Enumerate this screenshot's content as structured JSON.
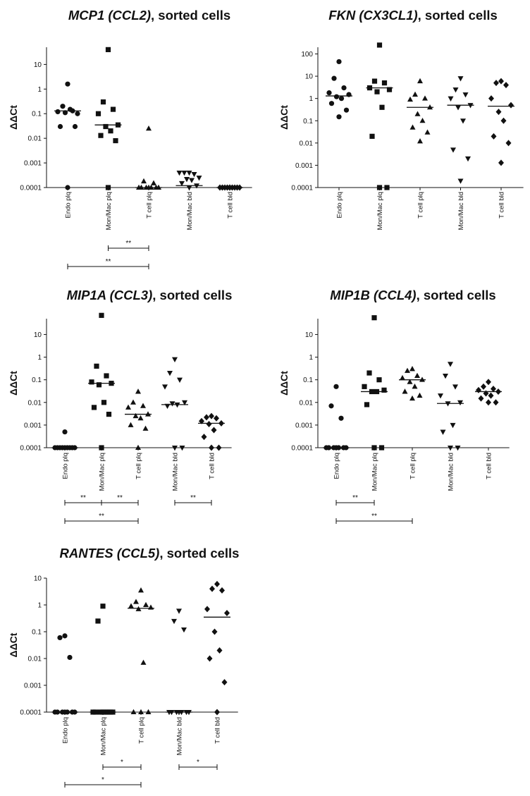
{
  "chart_data": [
    {
      "type": "scatter",
      "title": {
        "gene": "MCP1 (CCL2)",
        "suffix": ", sorted cells"
      },
      "ylabel": "ΔΔCt",
      "yscale": "log",
      "ylim": [
        0.0001,
        50
      ],
      "yticks": [
        "10",
        "1",
        "0.1",
        "0.01",
        "0.001",
        "0.0001"
      ],
      "categories": [
        "Endo plq",
        "Mon/Mac plq",
        "T cell plq",
        "Mon/Mac bld",
        "T cell bld"
      ],
      "series": [
        {
          "category": "Endo plq",
          "marker": "circle",
          "median": 0.13,
          "values": [
            1.6,
            0.2,
            0.13,
            0.12,
            0.1,
            0.11,
            0.15,
            0.03,
            0.03,
            0.0001
          ]
        },
        {
          "category": "Mon/Mac plq",
          "marker": "square",
          "median": 0.035,
          "values": [
            40,
            0.3,
            0.15,
            0.1,
            0.035,
            0.03,
            0.02,
            0.013,
            0.008,
            0.0001
          ]
        },
        {
          "category": "T cell plq",
          "marker": "triangle-up",
          "median": 0.0001,
          "values": [
            0.025,
            0.00018,
            0.00015,
            0.0001,
            0.0001,
            0.0001,
            0.0001,
            0.0001,
            0.0001,
            0.0001
          ]
        },
        {
          "category": "Mon/Mac bld",
          "marker": "triangle-down",
          "median": 0.00012,
          "values": [
            0.0004,
            0.0004,
            0.00035,
            0.0004,
            0.00025,
            0.00022,
            0.0002,
            0.00015,
            0.00012,
            0.0001
          ]
        },
        {
          "category": "T cell bld",
          "marker": "diamond",
          "median": 0.0001,
          "values": [
            0.0001,
            0.0001,
            0.0001,
            0.0001,
            0.0001,
            0.0001,
            0.0001,
            0.0001,
            0.0001,
            0.0001
          ]
        }
      ],
      "significance": [
        {
          "from": "Mon/Mac plq",
          "to": "T cell plq",
          "label": "**",
          "level": 0
        },
        {
          "from": "Endo plq",
          "to": "T cell plq",
          "label": "**",
          "level": 1
        }
      ]
    },
    {
      "type": "scatter",
      "title": {
        "gene": "FKN (CX3CL1)",
        "suffix": ", sorted cells"
      },
      "ylabel": "ΔΔCt",
      "yscale": "log",
      "ylim": [
        0.0001,
        200
      ],
      "yticks": [
        "100",
        "10",
        "1",
        "0.1",
        "0.01",
        "0.001",
        "0.0001"
      ],
      "categories": [
        "Endo plq",
        "Mon/Mac plq",
        "T cell plq",
        "Mon/Mac bld",
        "T cell bld"
      ],
      "series": [
        {
          "category": "Endo plq",
          "marker": "circle",
          "median": 1.3,
          "values": [
            45,
            8,
            3,
            1.8,
            1.5,
            1.2,
            1,
            0.6,
            0.3,
            0.15
          ]
        },
        {
          "category": "Mon/Mac plq",
          "marker": "square",
          "median": 3,
          "values": [
            250,
            6,
            5,
            3,
            2.5,
            2,
            0.4,
            0.02,
            0.0001,
            0.0001
          ]
        },
        {
          "category": "T cell plq",
          "marker": "triangle-up",
          "median": 0.4,
          "values": [
            6,
            1.5,
            1,
            0.9,
            0.4,
            0.2,
            0.1,
            0.05,
            0.03,
            0.012
          ]
        },
        {
          "category": "Mon/Mac bld",
          "marker": "triangle-down",
          "median": 0.5,
          "values": [
            8,
            2.5,
            1.5,
            1,
            0.5,
            0.4,
            0.1,
            0.005,
            0.002,
            0.0002
          ]
        },
        {
          "category": "T cell bld",
          "marker": "diamond",
          "median": 0.45,
          "values": [
            6,
            5,
            4,
            1,
            0.5,
            0.25,
            0.1,
            0.02,
            0.01,
            0.0013
          ]
        }
      ],
      "significance": []
    },
    {
      "type": "scatter",
      "title": {
        "gene": "MIP1A (CCL3)",
        "suffix": ", sorted cells"
      },
      "ylabel": "ΔΔCt",
      "yscale": "log",
      "ylim": [
        0.0001,
        50
      ],
      "yticks": [
        "10",
        "1",
        "0.1",
        "0.01",
        "0.001",
        "0.0001"
      ],
      "categories": [
        "Endo plq",
        "Mon/Mac plq",
        "T cell plq",
        "Mon/Mac bld",
        "T cell bld"
      ],
      "series": [
        {
          "category": "Endo plq",
          "marker": "circle",
          "median": 0.0001,
          "values": [
            0.0005,
            0.0001,
            0.0001,
            0.0001,
            0.0001,
            0.0001,
            0.0001,
            0.0001,
            0.0001,
            0.0001
          ]
        },
        {
          "category": "Mon/Mac plq",
          "marker": "square",
          "median": 0.07,
          "values": [
            70,
            0.4,
            0.15,
            0.08,
            0.07,
            0.06,
            0.01,
            0.006,
            0.003,
            0.0001
          ]
        },
        {
          "category": "T cell plq",
          "marker": "triangle-up",
          "median": 0.003,
          "values": [
            0.03,
            0.01,
            0.007,
            0.006,
            0.003,
            0.0025,
            0.002,
            0.001,
            0.0007,
            0.0001
          ]
        },
        {
          "category": "Mon/Mac bld",
          "marker": "triangle-down",
          "median": 0.008,
          "values": [
            0.8,
            0.2,
            0.1,
            0.05,
            0.01,
            0.009,
            0.008,
            0.007,
            0.0001,
            0.0001
          ]
        },
        {
          "category": "T cell bld",
          "marker": "diamond",
          "median": 0.0012,
          "values": [
            0.0025,
            0.0022,
            0.002,
            0.0015,
            0.0012,
            0.0011,
            0.0006,
            0.0003,
            0.0001,
            0.0001
          ]
        }
      ],
      "significance": [
        {
          "from": "Endo plq",
          "to": "Mon/Mac plq",
          "label": "**",
          "level": 0
        },
        {
          "from": "Mon/Mac plq",
          "to": "T cell plq",
          "label": "**",
          "level": 0
        },
        {
          "from": "Mon/Mac bld",
          "to": "T cell bld",
          "label": "**",
          "level": 0
        },
        {
          "from": "Endo plq",
          "to": "T cell plq",
          "label": "**",
          "level": 1
        }
      ]
    },
    {
      "type": "scatter",
      "title": {
        "gene": "MIP1B (CCL4)",
        "suffix": ", sorted cells"
      },
      "ylabel": "ΔΔCt",
      "yscale": "log",
      "ylim": [
        0.0001,
        50
      ],
      "yticks": [
        "10",
        "1",
        "0.1",
        "0.01",
        "0.001",
        "0.0001"
      ],
      "categories": [
        "Endo plq",
        "Mon/Mac plq",
        "T cell plq",
        "Mon/Mac bld",
        "T cell bld"
      ],
      "series": [
        {
          "category": "Endo plq",
          "marker": "circle",
          "median": 0.0001,
          "values": [
            0.05,
            0.007,
            0.002,
            0.0001,
            0.0001,
            0.0001,
            0.0001,
            0.0001,
            0.0001,
            0.0001
          ]
        },
        {
          "category": "Mon/Mac plq",
          "marker": "square",
          "median": 0.03,
          "values": [
            55,
            0.2,
            0.1,
            0.05,
            0.035,
            0.03,
            0.03,
            0.008,
            0.0001,
            0.0001
          ]
        },
        {
          "category": "T cell plq",
          "marker": "triangle-up",
          "median": 0.1,
          "values": [
            0.3,
            0.25,
            0.15,
            0.12,
            0.1,
            0.08,
            0.05,
            0.03,
            0.02,
            0.015
          ]
        },
        {
          "category": "Mon/Mac bld",
          "marker": "triangle-down",
          "median": 0.009,
          "values": [
            0.5,
            0.15,
            0.05,
            0.02,
            0.01,
            0.009,
            0.001,
            0.0005,
            0.0001,
            0.0001
          ]
        },
        {
          "category": "T cell bld",
          "marker": "diamond",
          "median": 0.03,
          "values": [
            0.08,
            0.05,
            0.04,
            0.035,
            0.03,
            0.025,
            0.02,
            0.015,
            0.01,
            0.01
          ]
        }
      ],
      "significance": [
        {
          "from": "Endo plq",
          "to": "Mon/Mac plq",
          "label": "**",
          "level": 0
        },
        {
          "from": "Endo plq",
          "to": "T cell plq",
          "label": "**",
          "level": 1
        }
      ]
    },
    {
      "type": "scatter",
      "title": {
        "gene": "RANTES (CCL5)",
        "suffix": ", sorted cells"
      },
      "ylabel": "ΔΔCt",
      "yscale": "log",
      "ylim": [
        0.0001,
        10
      ],
      "yticks": [
        "10",
        "1",
        "0.1",
        "0.01",
        "0.001",
        "0.0001"
      ],
      "categories": [
        "Endo plq",
        "Mon/Mac plq",
        "T cell plq",
        "Mon/Mac bld",
        "T cell bld"
      ],
      "series": [
        {
          "category": "Endo plq",
          "marker": "circle",
          "median": 0.0001,
          "values": [
            0.07,
            0.06,
            0.011,
            0.0001,
            0.0001,
            0.0001,
            0.0001,
            0.0001,
            0.0001,
            0.0001
          ]
        },
        {
          "category": "Mon/Mac plq",
          "marker": "square",
          "median": 0.0001,
          "values": [
            0.9,
            0.25,
            0.0001,
            0.0001,
            0.0001,
            0.0001,
            0.0001,
            0.0001,
            0.0001,
            0.0001
          ]
        },
        {
          "category": "T cell plq",
          "marker": "triangle-up",
          "median": 0.75,
          "values": [
            3.5,
            1.3,
            1,
            0.9,
            0.8,
            0.7,
            0.007,
            0.0001,
            0.0001,
            0.0001
          ]
        },
        {
          "category": "Mon/Mac bld",
          "marker": "triangle-down",
          "median": 0.0001,
          "values": [
            0.6,
            0.25,
            0.12,
            0.0001,
            0.0001,
            0.0001,
            0.0001,
            0.0001,
            0.0001,
            0.0001
          ]
        },
        {
          "category": "T cell bld",
          "marker": "diamond",
          "median": 0.35,
          "values": [
            6,
            4,
            3.5,
            0.7,
            0.5,
            0.1,
            0.02,
            0.01,
            0.0013,
            0.0001
          ]
        }
      ],
      "significance": [
        {
          "from": "Mon/Mac plq",
          "to": "T cell plq",
          "label": "*",
          "level": 0
        },
        {
          "from": "Mon/Mac bld",
          "to": "T cell bld",
          "label": "*",
          "level": 0
        },
        {
          "from": "Endo plq",
          "to": "T cell plq",
          "label": "*",
          "level": 1
        }
      ]
    }
  ]
}
